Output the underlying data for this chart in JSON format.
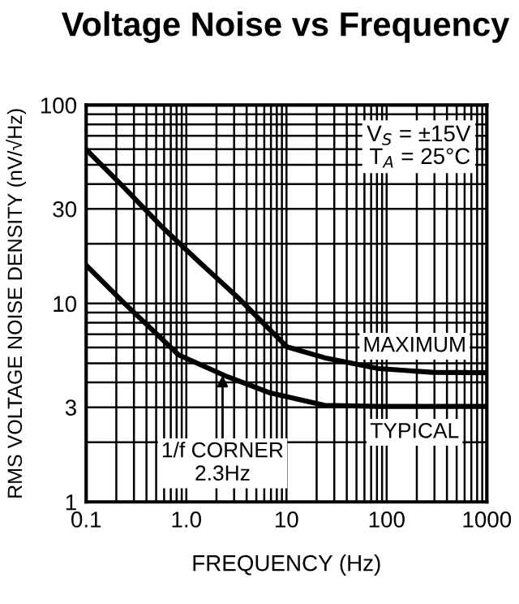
{
  "chart_data": {
    "type": "line",
    "title": "Voltage Noise vs Frequency",
    "xlabel": "FREQUENCY (Hz)",
    "ylabel": "RMS VOLTAGE NOISE DENSITY (nV/√Hz)",
    "log": "xy",
    "grid": true,
    "legend": false,
    "marker": "none",
    "line_style": "solid",
    "xlim": [
      0.1,
      1000
    ],
    "xticks": [
      0.1,
      {
        "value": 1,
        "label": "1.0"
      },
      10,
      100,
      1000
    ],
    "ylim": [
      1,
      100
    ],
    "yticks": [
      1,
      3,
      10,
      30,
      100
    ],
    "series": [
      {
        "name": "MAXIMUM",
        "color": "#000000",
        "x": [
          0.1,
          0.242,
          0.577,
          1.38,
          3.29,
          6.1,
          10.1,
          24,
          83,
          288,
          1000
        ],
        "values": [
          59.7,
          38.2,
          24.2,
          16.0,
          10.7,
          7.8,
          6.05,
          5.33,
          4.7,
          4.5,
          4.48
        ]
      },
      {
        "name": "TYPICAL",
        "color": "#000000",
        "x": [
          0.1,
          0.242,
          0.84,
          2.56,
          6.9,
          24,
          83,
          1000
        ],
        "values": [
          15.6,
          10.0,
          5.5,
          4.28,
          3.54,
          3.07,
          3.03,
          3.03
        ]
      }
    ],
    "annotations": [
      "V$_{S}$ = ±15V\nT$_{A}$ = 25°C",
      {
        "text": "1/f CORNER\n2.3Hz",
        "x": 2.3,
        "y": 4.35
      }
    ]
  }
}
